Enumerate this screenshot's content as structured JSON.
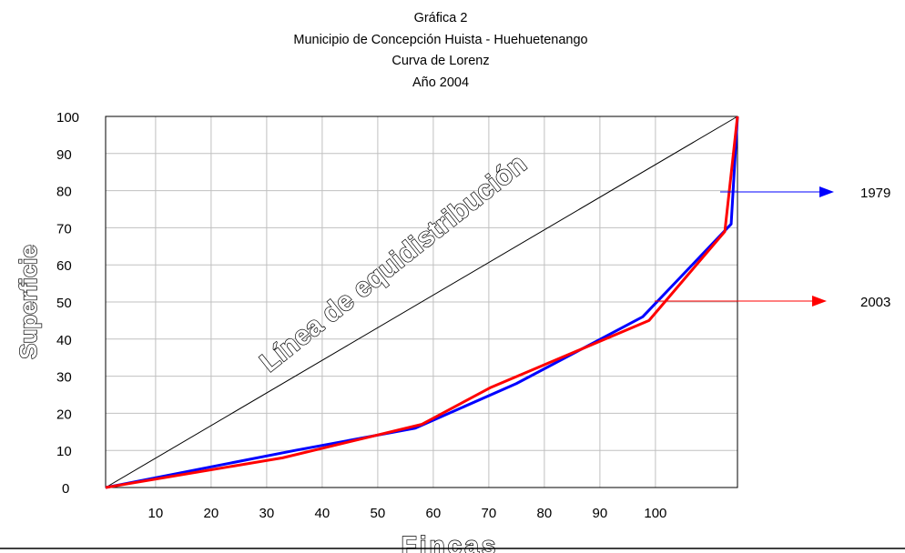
{
  "chart_data": {
    "type": "line",
    "title_lines": [
      "Gráfica 2",
      "Municipio de Concepción Huista -  Huehuetenango",
      "Curva de Lorenz",
      "Año 2004"
    ],
    "xlabel": "Fincas",
    "ylabel": "Superficie",
    "x_ticks": [
      10,
      20,
      30,
      40,
      50,
      60,
      70,
      80,
      90,
      100
    ],
    "y_ticks": [
      0,
      10,
      20,
      30,
      40,
      50,
      60,
      70,
      80,
      90,
      100
    ],
    "xlim": [
      0,
      100
    ],
    "ylim": [
      0,
      100
    ],
    "grid": true,
    "diagonal_label": "Línea de equidistribución",
    "series": [
      {
        "name": "1979",
        "color": "#0000ff",
        "x": [
          0,
          30,
          49,
          65,
          85,
          99,
          100
        ],
        "y": [
          0,
          10,
          16,
          28,
          46,
          71,
          100
        ]
      },
      {
        "name": "2003",
        "color": "#ff0000",
        "x": [
          0,
          28,
          50,
          61,
          86,
          98,
          100
        ],
        "y": [
          0,
          8,
          17,
          27,
          45,
          69,
          100
        ]
      }
    ]
  }
}
